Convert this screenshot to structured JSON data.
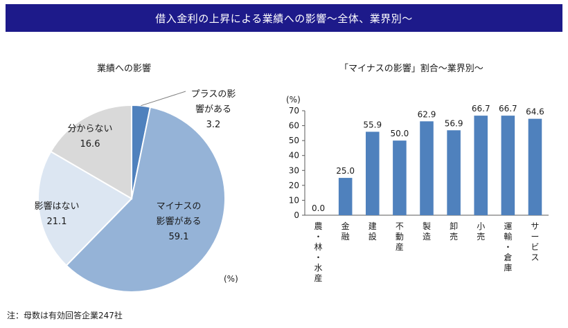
{
  "header": {
    "title": "借入金利の上昇による業績への影響～全体、業界別～"
  },
  "unit_label": "(%)",
  "footnote": "注：母数は有効回答企業247社",
  "chart_data": [
    {
      "type": "pie",
      "title": "業績への影響",
      "unit": "(%)",
      "start": "12 o'clock, clockwise",
      "slices": [
        {
          "label": "プラスの影響がある",
          "label_lines": [
            "プラスの影",
            "響がある"
          ],
          "value": 3.2,
          "color": "#4f81bd"
        },
        {
          "label": "マイナスの影響がある",
          "label_lines": [
            "マイナスの",
            "影響がある"
          ],
          "value": 59.1,
          "color": "#95b3d7"
        },
        {
          "label": "影響はない",
          "label_lines": [
            "影響はない"
          ],
          "value": 21.1,
          "color": "#dce6f2"
        },
        {
          "label": "分からない",
          "label_lines": [
            "分からない"
          ],
          "value": 16.6,
          "color": "#d9d9d9"
        }
      ]
    },
    {
      "type": "bar",
      "title": "「マイナスの影響」割合～業界別～",
      "ylabel": "(%)",
      "ylim": [
        0,
        70
      ],
      "yticks": [
        0,
        10,
        20,
        30,
        40,
        50,
        60,
        70
      ],
      "grid": false,
      "bar_color": "#4f81bd",
      "categories": [
        "農・林・水産",
        "金融",
        "建設",
        "不動産",
        "製造",
        "卸売",
        "小売",
        "運輸・倉庫",
        "サービス"
      ],
      "category_chars": [
        [
          "農",
          "・",
          "林",
          "・",
          "水",
          "産"
        ],
        [
          "金",
          "融"
        ],
        [
          "建",
          "設"
        ],
        [
          "不",
          "動",
          "産"
        ],
        [
          "製",
          "造"
        ],
        [
          "卸",
          "売"
        ],
        [
          "小",
          "売"
        ],
        [
          "運",
          "輸",
          "・",
          "倉",
          "庫"
        ],
        [
          "サ",
          "ー",
          "ビ",
          "ス"
        ]
      ],
      "values": [
        0.0,
        25.0,
        55.9,
        50.0,
        62.9,
        56.9,
        66.7,
        66.7,
        64.6
      ],
      "value_labels": [
        "0.0",
        "25.0",
        "55.9",
        "50.0",
        "62.9",
        "56.9",
        "66.7",
        "66.7",
        "64.6"
      ]
    }
  ]
}
